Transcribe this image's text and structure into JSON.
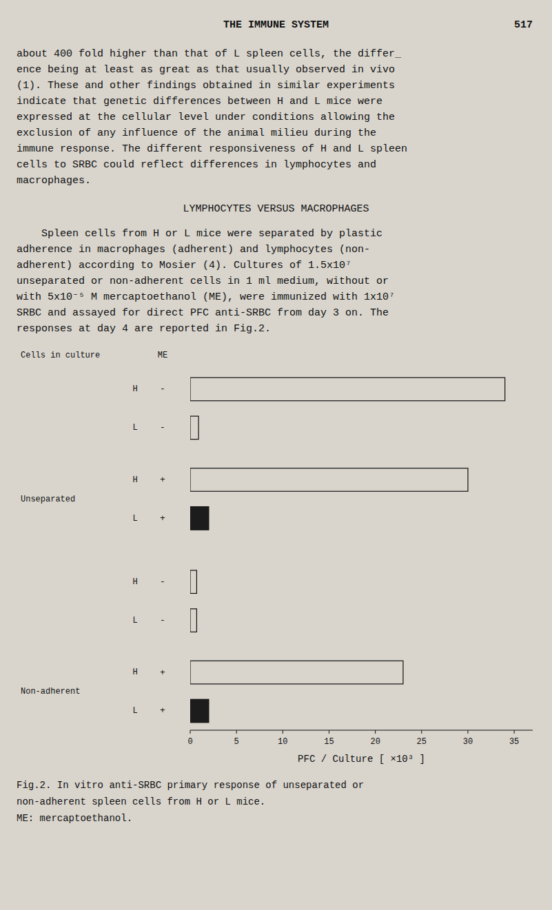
{
  "page": {
    "title": "THE IMMUNE SYSTEM",
    "page_number": "517",
    "body_text_lines": [
      "about 400 fold higher than that of L spleen cells, the differ_",
      "ence being at least as great as that usually observed in vivo",
      "(1). These and other findings obtained in similar experiments",
      "indicate that genetic differences between H and L mice were",
      "expressed at the cellular level under conditions allowing the",
      "exclusion of any influence of the animal milieu during the",
      "immune response. The different responsiveness of H and L spleen",
      "cells to SRBC could reflect differences in lymphocytes and",
      "macrophages."
    ],
    "section_title": "LYMPHOCYTES VERSUS MACROPHAGES",
    "para_text_lines": [
      "    Spleen cells from H or L mice were separated by plastic",
      "adherence in macrophages (adherent) and lymphocytes (non-",
      "adherent) according to Mosier (4). Cultures of 1.5x10⁷",
      "unseparated or non-adherent cells in 1 ml medium, without or",
      "with 5x10⁻⁵ M mercaptoethanol (ME), were immunized with 1x10⁷",
      "SRBC and assayed for direct PFC anti-SRBC from day 3 on. The",
      "responses at day 4 are reported in Fig.2."
    ],
    "caption_lines": [
      "Fig.2. In vitro anti-SRBC primary response of unseparated or",
      "non-adherent spleen cells from H or L mice.",
      "ME: mercaptoethanol."
    ],
    "background_color": "#d9d5cd"
  },
  "chart_data": {
    "type": "bar",
    "orientation": "horizontal",
    "category_header": "Cells in culture",
    "me_header": "ME",
    "categories": [
      "H",
      "L",
      "H",
      "L",
      "H",
      "L",
      "H",
      "L"
    ],
    "me": [
      "-",
      "-",
      "+",
      "+",
      "-",
      "-",
      "+",
      "+"
    ],
    "groups": [
      "Unseparated",
      "Non-adherent"
    ],
    "values": [
      34.0,
      0.9,
      30.0,
      2.0,
      0.7,
      0.7,
      23.0,
      2.0
    ],
    "colors": [
      "#d9d5cd",
      "#d9d5cd",
      "#d9d5cd",
      "#1c1c1c",
      "#d9d5cd",
      "#d9d5cd",
      "#d9d5cd",
      "#1c1c1c"
    ],
    "xlabel": "PFC / Culture [ ×10³ ]",
    "xlim": [
      0,
      37
    ],
    "xticks": [
      0,
      5,
      10,
      15,
      20,
      25,
      30,
      35
    ],
    "grid": false
  }
}
